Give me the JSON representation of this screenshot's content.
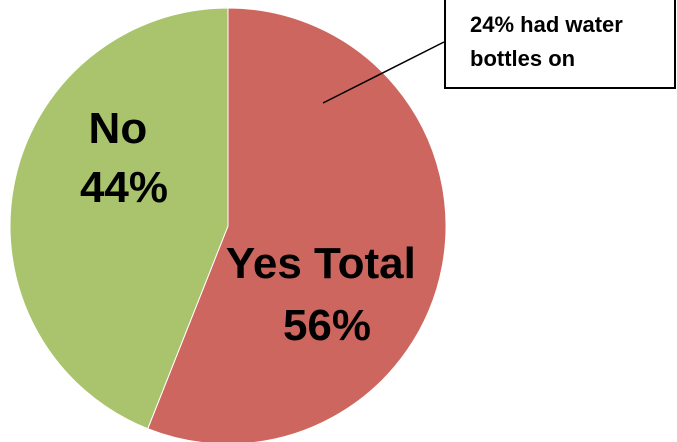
{
  "chart_data": {
    "type": "pie",
    "title": "",
    "slices": [
      {
        "label_line1": "Yes Total",
        "label_line2": "56%",
        "value": 56,
        "color": "#CD665E"
      },
      {
        "label_line1": "No",
        "label_line2": "44%",
        "value": 44,
        "color": "#A9C46C"
      }
    ],
    "start_angle_deg": 0,
    "direction": "clockwise",
    "annotation": {
      "line1": "24% had water",
      "line2": "bottles on"
    }
  }
}
